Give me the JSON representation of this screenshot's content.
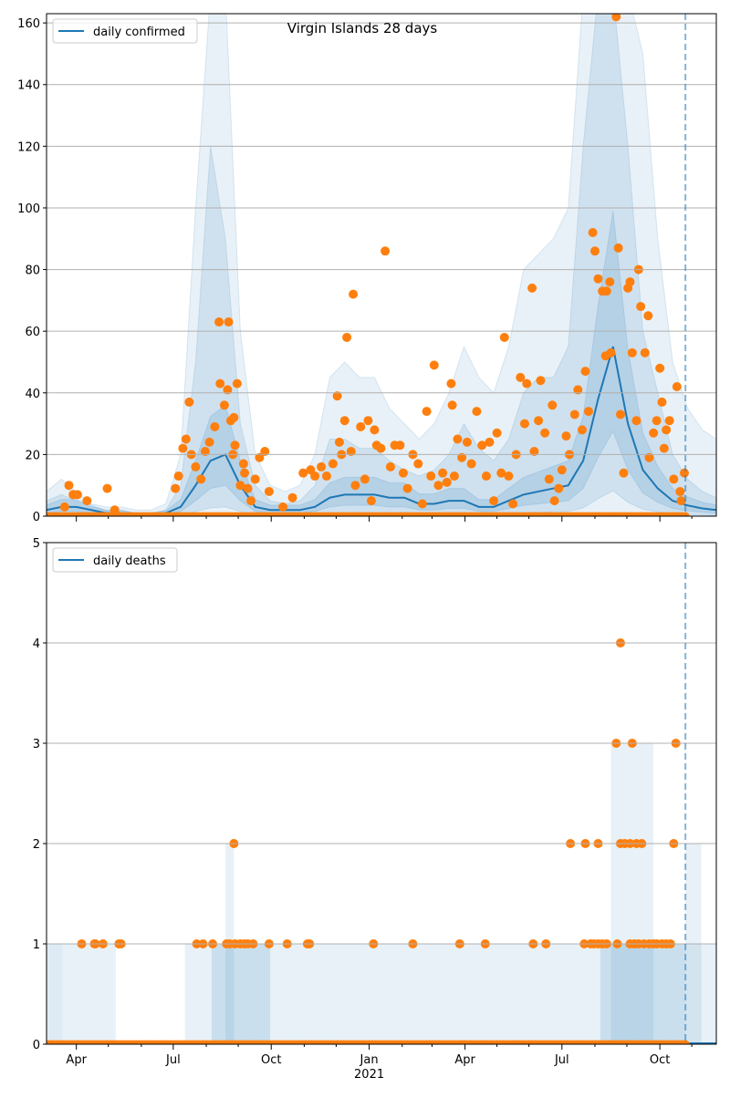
{
  "chart_data": [
    {
      "type": "line",
      "title": "Virgin Islands 28 days",
      "legend": "daily confirmed",
      "legend_position": "top-left",
      "x_unit": "days since 2020-03-04",
      "ylim": [
        0,
        163
      ],
      "yticks": [
        0,
        20,
        40,
        60,
        80,
        100,
        120,
        140,
        160
      ],
      "grid": true,
      "forecast_start_day": 600,
      "colors": {
        "line": "#1f77b4",
        "band": "#1f77b4",
        "points": "#ff7f0e"
      },
      "grid_days": [
        0,
        14,
        28,
        42,
        56,
        70,
        84,
        98,
        112,
        126,
        140,
        154,
        168,
        182,
        196,
        210,
        224,
        238,
        252,
        266,
        280,
        294,
        308,
        322,
        336,
        350,
        364,
        378,
        392,
        406,
        420,
        434,
        448,
        462,
        476,
        490,
        504,
        518,
        532,
        546,
        560,
        574,
        588,
        602,
        616,
        629
      ],
      "median": [
        2,
        3,
        3,
        2,
        1,
        1,
        0.5,
        0.5,
        1,
        3,
        10,
        18,
        20,
        10,
        3,
        2,
        2,
        2,
        3,
        6,
        7,
        7,
        7,
        6,
        6,
        4,
        4,
        5,
        5,
        3,
        3,
        5,
        7,
        8,
        9,
        10,
        18,
        38,
        55,
        30,
        15,
        9,
        5,
        3.5,
        2.5,
        2
      ],
      "outer_upper": [
        8,
        12,
        8,
        4,
        3,
        3,
        2,
        2,
        4,
        20,
        100,
        170,
        170,
        60,
        20,
        10,
        8,
        10,
        20,
        45,
        50,
        45,
        45,
        35,
        30,
        25,
        30,
        40,
        55,
        45,
        40,
        55,
        80,
        85,
        90,
        100,
        170,
        170,
        170,
        170,
        150,
        90,
        50,
        35,
        28,
        25
      ],
      "mid_upper": [
        5,
        7,
        5,
        3,
        2,
        2,
        1,
        1,
        2,
        10,
        50,
        120,
        90,
        30,
        10,
        5,
        4,
        5,
        10,
        25,
        25,
        22,
        22,
        18,
        15,
        13,
        15,
        20,
        30,
        22,
        18,
        25,
        40,
        45,
        45,
        55,
        120,
        170,
        170,
        120,
        60,
        40,
        20,
        12,
        8,
        6
      ],
      "inner_band_factors": [
        0.5,
        1.8
      ],
      "observed": [
        [
          17,
          3
        ],
        [
          21,
          10
        ],
        [
          25,
          7
        ],
        [
          29,
          7
        ],
        [
          38,
          5
        ],
        [
          57,
          9
        ],
        [
          64,
          2
        ],
        [
          121,
          9
        ],
        [
          124,
          13
        ],
        [
          128,
          22
        ],
        [
          131,
          25
        ],
        [
          134,
          37
        ],
        [
          136,
          20
        ],
        [
          140,
          16
        ],
        [
          145,
          12
        ],
        [
          149,
          21
        ],
        [
          153,
          24
        ],
        [
          158,
          29
        ],
        [
          162,
          63
        ],
        [
          163,
          43
        ],
        [
          167,
          36
        ],
        [
          170,
          41
        ],
        [
          171,
          63
        ],
        [
          173,
          31
        ],
        [
          175,
          20
        ],
        [
          176,
          32
        ],
        [
          177,
          23
        ],
        [
          179,
          43
        ],
        [
          182,
          10
        ],
        [
          185,
          17
        ],
        [
          186,
          14
        ],
        [
          189,
          9
        ],
        [
          192,
          5
        ],
        [
          196,
          12
        ],
        [
          200,
          19
        ],
        [
          205,
          21
        ],
        [
          209,
          8
        ],
        [
          222,
          3
        ],
        [
          231,
          6
        ],
        [
          241,
          14
        ],
        [
          248,
          15
        ],
        [
          252,
          13
        ],
        [
          258,
          16
        ],
        [
          263,
          13
        ],
        [
          269,
          17
        ],
        [
          273,
          39
        ],
        [
          275,
          24
        ],
        [
          277,
          20
        ],
        [
          280,
          31
        ],
        [
          282,
          58
        ],
        [
          286,
          21
        ],
        [
          288,
          72
        ],
        [
          290,
          10
        ],
        [
          295,
          29
        ],
        [
          299,
          12
        ],
        [
          302,
          31
        ],
        [
          305,
          5
        ],
        [
          308,
          28
        ],
        [
          310,
          23
        ],
        [
          314,
          22
        ],
        [
          318,
          86
        ],
        [
          323,
          16
        ],
        [
          327,
          23
        ],
        [
          332,
          23
        ],
        [
          335,
          14
        ],
        [
          339,
          9
        ],
        [
          344,
          20
        ],
        [
          349,
          17
        ],
        [
          353,
          4
        ],
        [
          357,
          34
        ],
        [
          361,
          13
        ],
        [
          364,
          49
        ],
        [
          368,
          10
        ],
        [
          372,
          14
        ],
        [
          376,
          11
        ],
        [
          380,
          43
        ],
        [
          381,
          36
        ],
        [
          383,
          13
        ],
        [
          386,
          25
        ],
        [
          390,
          19
        ],
        [
          395,
          24
        ],
        [
          399,
          17
        ],
        [
          404,
          34
        ],
        [
          409,
          23
        ],
        [
          413,
          13
        ],
        [
          416,
          24
        ],
        [
          420,
          5
        ],
        [
          423,
          27
        ],
        [
          427,
          14
        ],
        [
          430,
          58
        ],
        [
          434,
          13
        ],
        [
          438,
          4
        ],
        [
          441,
          20
        ],
        [
          445,
          45
        ],
        [
          449,
          30
        ],
        [
          451,
          43
        ],
        [
          456,
          74
        ],
        [
          458,
          21
        ],
        [
          462,
          31
        ],
        [
          464,
          44
        ],
        [
          468,
          27
        ],
        [
          472,
          12
        ],
        [
          475,
          36
        ],
        [
          477,
          5
        ],
        [
          481,
          9
        ],
        [
          484,
          15
        ],
        [
          488,
          26
        ],
        [
          491,
          20
        ],
        [
          496,
          33
        ],
        [
          499,
          41
        ],
        [
          503,
          28
        ],
        [
          506,
          47
        ],
        [
          509,
          34
        ],
        [
          513,
          92
        ],
        [
          515,
          86
        ],
        [
          518,
          77
        ],
        [
          522,
          73
        ],
        [
          525,
          52
        ],
        [
          526,
          73
        ],
        [
          529,
          76
        ],
        [
          530,
          53
        ],
        [
          535,
          162
        ],
        [
          537,
          87
        ],
        [
          539,
          33
        ],
        [
          542,
          14
        ],
        [
          546,
          74
        ],
        [
          548,
          76
        ],
        [
          550,
          53
        ],
        [
          554,
          31
        ],
        [
          556,
          80
        ],
        [
          558,
          68
        ],
        [
          562,
          53
        ],
        [
          565,
          65
        ],
        [
          566,
          19
        ],
        [
          570,
          27
        ],
        [
          573,
          31
        ],
        [
          576,
          48
        ],
        [
          578,
          37
        ],
        [
          580,
          22
        ],
        [
          582,
          28
        ],
        [
          585,
          31
        ],
        [
          589,
          12
        ],
        [
          592,
          42
        ],
        [
          595,
          8
        ],
        [
          596,
          5
        ],
        [
          599,
          14
        ]
      ],
      "zeros": {
        "from": 0,
        "to": 600,
        "step": 3
      }
    },
    {
      "type": "line",
      "legend": "daily deaths",
      "legend_position": "top-left",
      "ylim": [
        0,
        5
      ],
      "yticks": [
        0,
        1,
        2,
        3,
        4,
        5
      ],
      "grid": true,
      "x_unit": "days since 2020-03-04",
      "forecast_start_day": 600,
      "xticks": [
        {
          "day": 28,
          "label": "Apr"
        },
        {
          "day": 119,
          "label": "Jul"
        },
        {
          "day": 211,
          "label": "Oct"
        },
        {
          "day": 303,
          "label": "Jan",
          "sublabel": "2021"
        },
        {
          "day": 393,
          "label": "Apr"
        },
        {
          "day": 484,
          "label": "Jul"
        },
        {
          "day": 576,
          "label": "Oct"
        }
      ],
      "minor_tick_days": [
        58,
        89,
        150,
        180,
        242,
        272,
        334,
        362,
        423,
        453,
        515,
        545,
        606
      ],
      "band_segments": [
        {
          "from": 0,
          "to": 15,
          "upper": 1,
          "level": 2
        },
        {
          "from": 15,
          "to": 65,
          "upper": 1,
          "level": 1
        },
        {
          "from": 72,
          "to": 130,
          "upper": 0,
          "level": 1
        },
        {
          "from": 130,
          "to": 600,
          "upper": 1,
          "level": 1
        },
        {
          "from": 155,
          "to": 210,
          "upper": 1,
          "level": 2
        },
        {
          "from": 168,
          "to": 176,
          "upper": 2,
          "level": 1
        },
        {
          "from": 520,
          "to": 600,
          "upper": 1,
          "level": 2
        },
        {
          "from": 530,
          "to": 570,
          "upper": 3,
          "level": 1
        },
        {
          "from": 600,
          "to": 615,
          "upper": 2,
          "level": 1
        },
        {
          "from": 600,
          "to": 629,
          "upper": 1,
          "level": 1
        }
      ],
      "observed": [
        [
          33,
          1
        ],
        [
          45,
          1
        ],
        [
          46,
          1
        ],
        [
          53,
          1
        ],
        [
          68,
          1
        ],
        [
          70,
          1
        ],
        [
          141,
          1
        ],
        [
          147,
          1
        ],
        [
          156,
          1
        ],
        [
          169,
          1
        ],
        [
          172,
          1
        ],
        [
          177,
          1
        ],
        [
          182,
          1
        ],
        [
          186,
          1
        ],
        [
          189,
          1
        ],
        [
          194,
          1
        ],
        [
          209,
          1
        ],
        [
          226,
          1
        ],
        [
          245,
          1
        ],
        [
          247,
          1
        ],
        [
          307,
          1
        ],
        [
          344,
          1
        ],
        [
          388,
          1
        ],
        [
          412,
          1
        ],
        [
          457,
          1
        ],
        [
          469,
          1
        ],
        [
          505,
          1
        ],
        [
          511,
          1
        ],
        [
          514,
          1
        ],
        [
          518,
          1
        ],
        [
          522,
          1
        ],
        [
          526,
          1
        ],
        [
          536,
          1
        ],
        [
          548,
          1
        ],
        [
          552,
          1
        ],
        [
          556,
          1
        ],
        [
          561,
          1
        ],
        [
          566,
          1
        ],
        [
          570,
          1
        ],
        [
          573,
          1
        ],
        [
          578,
          1
        ],
        [
          582,
          1
        ],
        [
          586,
          1
        ],
        [
          176,
          2
        ],
        [
          492,
          2
        ],
        [
          506,
          2
        ],
        [
          518,
          2
        ],
        [
          539,
          2
        ],
        [
          543,
          2
        ],
        [
          548,
          2
        ],
        [
          554,
          2
        ],
        [
          559,
          2
        ],
        [
          589,
          2
        ],
        [
          535,
          3
        ],
        [
          550,
          3
        ],
        [
          591,
          3
        ],
        [
          539,
          4
        ]
      ],
      "zeros": {
        "from": 0,
        "to": 600,
        "step": 3
      }
    }
  ]
}
